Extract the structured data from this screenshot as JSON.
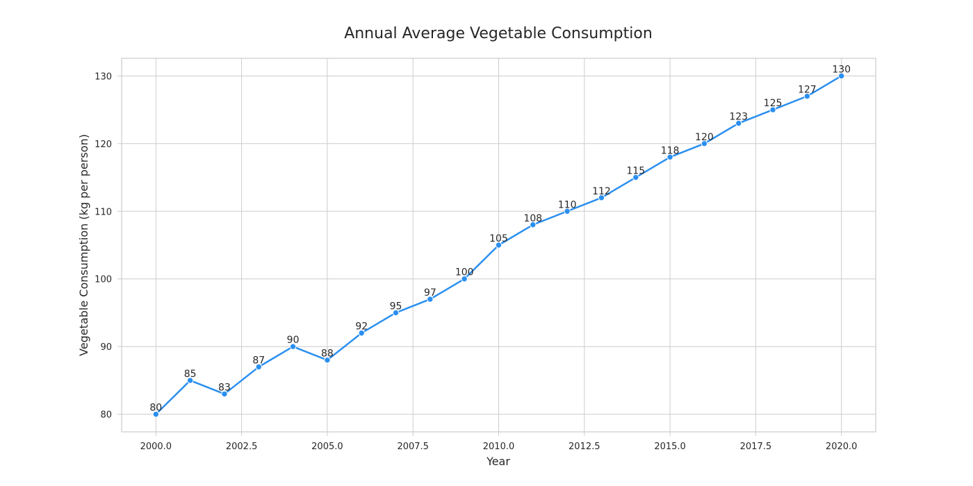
{
  "chart_data": {
    "type": "line",
    "title": "Annual Average Vegetable Consumption",
    "xlabel": "Year",
    "ylabel": "Vegetable Consumption (kg per person)",
    "x": [
      2000,
      2001,
      2002,
      2003,
      2004,
      2005,
      2006,
      2007,
      2008,
      2009,
      2010,
      2011,
      2012,
      2013,
      2014,
      2015,
      2016,
      2017,
      2018,
      2019,
      2020
    ],
    "series": [
      {
        "values": [
          80,
          85,
          83,
          87,
          90,
          88,
          92,
          95,
          97,
          100,
          105,
          108,
          110,
          112,
          115,
          118,
          120,
          123,
          125,
          127,
          130
        ],
        "color": "#2a8ff0"
      }
    ],
    "xticks": [
      "2000.0",
      "2002.5",
      "2005.0",
      "2007.5",
      "2010.0",
      "2012.5",
      "2015.0",
      "2017.5",
      "2020.0"
    ],
    "yticks": [
      "80",
      "90",
      "100",
      "110",
      "120",
      "130"
    ],
    "xlim": [
      1999,
      2021
    ],
    "ylim": [
      77.4,
      132.6
    ],
    "grid": true,
    "data_labels": true
  }
}
